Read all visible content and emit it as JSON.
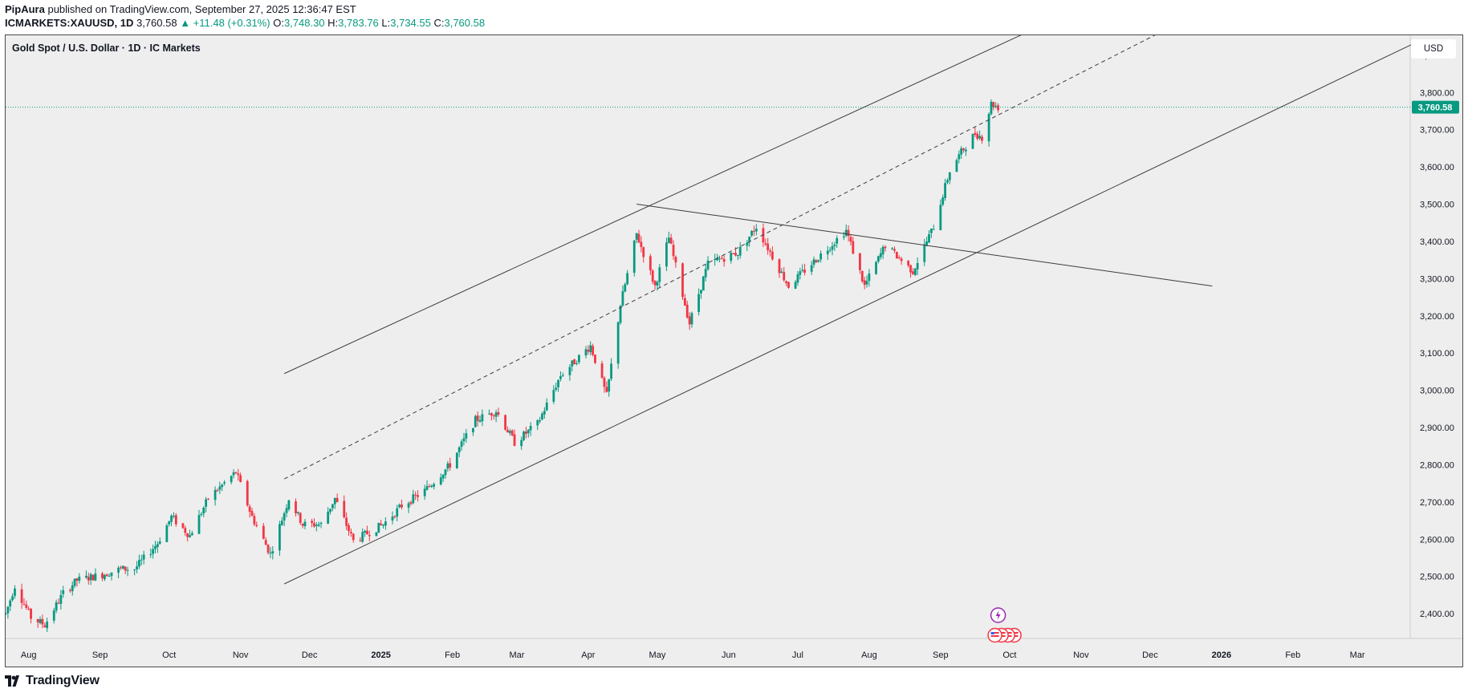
{
  "header": {
    "author": "PipAura",
    "published_text": "published on TradingView.com, September 27, 2025 12:36:47 EST",
    "symbol": "ICMARKETS:XAUUSD, 1D",
    "last": "3,760.58",
    "change": "▲ +11.48 (+0.31%)",
    "o_label": "O:",
    "o_value": "3,748.30",
    "h_label": "H:",
    "h_value": "3,783.76",
    "l_label": "L:",
    "l_value": "3,734.55",
    "c_label": "C:",
    "c_value": "3,760.58"
  },
  "chart_title": "Gold Spot / U.S. Dollar · 1D · IC Markets",
  "currency_button": "USD",
  "footer": {
    "brand": "TradingView",
    "logo_icon": "tradingview-logo-icon"
  },
  "colors": {
    "up": "#089981",
    "down": "#f23645",
    "bg": "#eeeeee",
    "line": "#4a4a4a"
  },
  "chart_data": {
    "type": "candlestick",
    "title": "Gold Spot / U.S. Dollar · 1D · IC Markets",
    "ylim": [
      2340,
      3960
    ],
    "y_ticks": [
      "3,900.00",
      "3,800.00",
      "3,700.00",
      "3,600.00",
      "3,500.00",
      "3,400.00",
      "3,300.00",
      "3,200.00",
      "3,100.00",
      "3,000.00",
      "2,900.00",
      "2,800.00",
      "2,700.00",
      "2,600.00",
      "2,500.00",
      "2,400.00"
    ],
    "y_tick_values": [
      3900,
      3800,
      3700,
      3600,
      3500,
      3400,
      3300,
      3200,
      3100,
      3000,
      2900,
      2800,
      2700,
      2600,
      2500,
      2400
    ],
    "x_ticks": [
      "Aug",
      "Sep",
      "Oct",
      "Nov",
      "Dec",
      "2025",
      "Feb",
      "Mar",
      "Apr",
      "May",
      "Jun",
      "Jul",
      "Aug",
      "Sep",
      "Oct",
      "Nov",
      "Dec",
      "2026",
      "Feb",
      "Mar"
    ],
    "x_tick_dates": [
      "2024-08-01",
      "2024-09-01",
      "2024-10-01",
      "2024-11-01",
      "2024-12-01",
      "2025-01-01",
      "2025-02-01",
      "2025-03-01",
      "2025-04-01",
      "2025-05-01",
      "2025-06-01",
      "2025-07-01",
      "2025-08-01",
      "2025-09-01",
      "2025-10-01",
      "2025-11-01",
      "2025-12-01",
      "2026-01-01",
      "2026-02-01",
      "2026-03-01"
    ],
    "last_price_label": "3,760.58",
    "last_price": 3760.58,
    "price_path": [
      [
        "2024-07-22",
        2400
      ],
      [
        "2024-07-26",
        2475
      ],
      [
        "2024-08-02",
        2390
      ],
      [
        "2024-08-08",
        2370
      ],
      [
        "2024-08-16",
        2455
      ],
      [
        "2024-08-22",
        2490
      ],
      [
        "2024-09-02",
        2505
      ],
      [
        "2024-09-10",
        2520
      ],
      [
        "2024-09-16",
        2520
      ],
      [
        "2024-09-26",
        2590
      ],
      [
        "2024-10-02",
        2660
      ],
      [
        "2024-10-10",
        2610
      ],
      [
        "2024-10-18",
        2710
      ],
      [
        "2024-10-30",
        2780
      ],
      [
        "2024-11-06",
        2660
      ],
      [
        "2024-11-14",
        2560
      ],
      [
        "2024-11-22",
        2710
      ],
      [
        "2024-11-28",
        2640
      ],
      [
        "2024-12-06",
        2640
      ],
      [
        "2024-12-12",
        2710
      ],
      [
        "2024-12-20",
        2595
      ],
      [
        "2025-01-02",
        2640
      ],
      [
        "2025-01-10",
        2690
      ],
      [
        "2025-01-20",
        2730
      ],
      [
        "2025-01-31",
        2800
      ],
      [
        "2025-02-11",
        2920
      ],
      [
        "2025-02-20",
        2945
      ],
      [
        "2025-02-28",
        2860
      ],
      [
        "2025-03-10",
        2910
      ],
      [
        "2025-03-20",
        3040
      ],
      [
        "2025-04-02",
        3120
      ],
      [
        "2025-04-09",
        2985
      ],
      [
        "2025-04-15",
        3230
      ],
      [
        "2025-04-22",
        3420
      ],
      [
        "2025-04-30",
        3280
      ],
      [
        "2025-05-06",
        3410
      ],
      [
        "2025-05-15",
        3180
      ],
      [
        "2025-05-23",
        3340
      ],
      [
        "2025-06-05",
        3370
      ],
      [
        "2025-06-13",
        3440
      ],
      [
        "2025-06-27",
        3280
      ],
      [
        "2025-07-07",
        3340
      ],
      [
        "2025-07-22",
        3430
      ],
      [
        "2025-07-30",
        3280
      ],
      [
        "2025-08-08",
        3390
      ],
      [
        "2025-08-20",
        3320
      ],
      [
        "2025-08-29",
        3440
      ],
      [
        "2025-09-05",
        3590
      ],
      [
        "2025-09-10",
        3640
      ],
      [
        "2025-09-16",
        3690
      ],
      [
        "2025-09-19",
        3680
      ],
      [
        "2025-09-23",
        3770
      ],
      [
        "2025-09-26",
        3760.58
      ]
    ],
    "channel_lines": [
      {
        "name": "upper",
        "from": [
          "2024-11-20",
          3045
        ],
        "to": [
          "2025-10-08",
          3960
        ]
      },
      {
        "name": "median",
        "from": [
          "2024-11-20",
          2762
        ],
        "to": [
          "2025-12-05",
          3960
        ],
        "dashed": true
      },
      {
        "name": "lower",
        "from": [
          "2024-11-20",
          2480
        ],
        "to": [
          "2026-03-25",
          3930
        ]
      },
      {
        "name": "trendline",
        "from": [
          "2025-04-22",
          3500
        ],
        "to": [
          "2025-12-28",
          3280
        ]
      }
    ],
    "grid": false
  }
}
